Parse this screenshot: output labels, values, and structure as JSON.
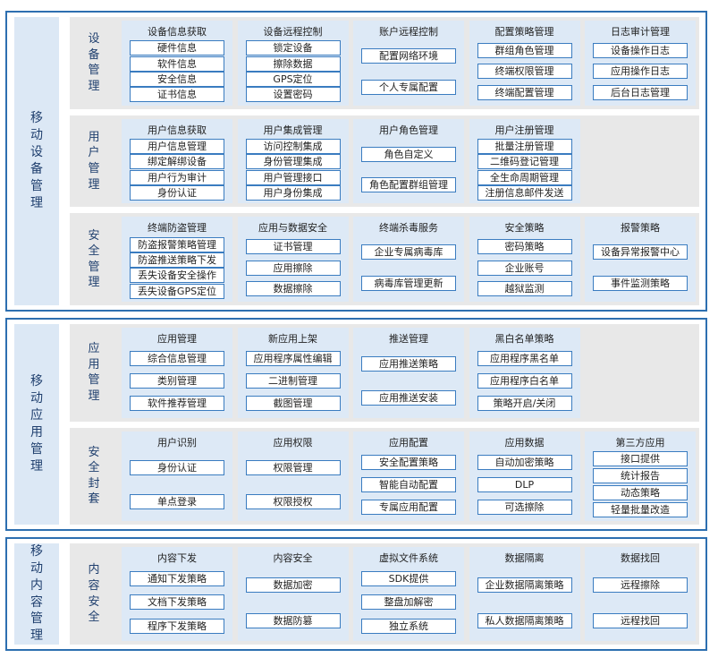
{
  "sections": [
    {
      "title": "移动设备管理",
      "groups": [
        {
          "title": "设备管理",
          "cards": [
            {
              "title": "设备信息获取",
              "items": [
                "硬件信息",
                "软件信息",
                "安全信息",
                "证书信息"
              ]
            },
            {
              "title": "设备远程控制",
              "items": [
                "锁定设备",
                "擦除数据",
                "GPS定位",
                "设置密码"
              ]
            },
            {
              "title": "账户远程控制",
              "items": [
                "配置网络环境",
                "个人专属配置"
              ]
            },
            {
              "title": "配置策略管理",
              "items": [
                "群组角色管理",
                "终端权限管理",
                "终端配置管理"
              ]
            },
            {
              "title": "日志审计管理",
              "items": [
                "设备操作日志",
                "应用操作日志",
                "后台日志管理"
              ]
            }
          ]
        },
        {
          "title": "用户管理",
          "cards": [
            {
              "title": "用户信息获取",
              "items": [
                "用户信息管理",
                "绑定解绑设备",
                "用户行为审计",
                "身份认证"
              ]
            },
            {
              "title": "用户集成管理",
              "items": [
                "访问控制集成",
                "身份管理集成",
                "用户管理接口",
                "用户身份集成"
              ]
            },
            {
              "title": "用户角色管理",
              "items": [
                "角色自定义",
                "角色配置群组管理"
              ]
            },
            {
              "title": "用户注册管理",
              "items": [
                "批量注册管理",
                "二维码登记管理",
                "全生命周期管理",
                "注册信息邮件发送"
              ]
            }
          ]
        },
        {
          "title": "安全管理",
          "cards": [
            {
              "title": "终端防盗管理",
              "items": [
                "防盗报警策略管理",
                "防盗推送策略下发",
                "丢失设备安全操作",
                "丢失设备GPS定位"
              ]
            },
            {
              "title": "应用与数据安全",
              "items": [
                "证书管理",
                "应用擦除",
                "数据擦除"
              ]
            },
            {
              "title": "终端杀毒服务",
              "items": [
                "企业专属病毒库",
                "病毒库管理更新"
              ]
            },
            {
              "title": "安全策略",
              "items": [
                "密码策略",
                "企业账号",
                "越狱监测"
              ]
            },
            {
              "title": "报警策略",
              "items": [
                "设备异常报警中心",
                "事件监测策略"
              ]
            }
          ]
        }
      ]
    },
    {
      "title": "移动应用管理",
      "groups": [
        {
          "title": "应用管理",
          "cards": [
            {
              "title": "应用管理",
              "items": [
                "综合信息管理",
                "类别管理",
                "软件推荐管理"
              ]
            },
            {
              "title": "新应用上架",
              "items": [
                "应用程序属性编辑",
                "二进制管理",
                "截图管理"
              ]
            },
            {
              "title": "推送管理",
              "items": [
                "应用推送策略",
                "应用推送安装"
              ]
            },
            {
              "title": "黑白名单策略",
              "items": [
                "应用程序黑名单",
                "应用程序白名单",
                "策略开启/关闭"
              ]
            }
          ]
        },
        {
          "title": "安全封套",
          "cards": [
            {
              "title": "用户识别",
              "items": [
                "身份认证",
                "单点登录"
              ]
            },
            {
              "title": "应用权限",
              "items": [
                "权限管理",
                "权限授权"
              ]
            },
            {
              "title": "应用配置",
              "items": [
                "安全配置策略",
                "智能自动配置",
                "专属应用配置"
              ]
            },
            {
              "title": "应用数据",
              "items": [
                "自动加密策略",
                "DLP",
                "可选擦除"
              ]
            },
            {
              "title": "第三方应用",
              "items": [
                "接口提供",
                "统计报告",
                "动态策略",
                "轻量批量改造"
              ]
            }
          ]
        }
      ]
    },
    {
      "title": "移动内容管理",
      "groups": [
        {
          "title": "内容安全",
          "cards": [
            {
              "title": "内容下发",
              "items": [
                "通知下发策略",
                "文档下发策略",
                "程序下发策略"
              ]
            },
            {
              "title": "内容安全",
              "items": [
                "数据加密",
                "数据防篡"
              ]
            },
            {
              "title": "虚拟文件系统",
              "items": [
                "SDK提供",
                "整盘加解密",
                "独立系统"
              ]
            },
            {
              "title": "数据隔离",
              "items": [
                "企业数据隔离策略",
                "私人数据隔离策略"
              ]
            },
            {
              "title": "数据找回",
              "items": [
                "远程擦除",
                "远程找回"
              ]
            }
          ]
        }
      ]
    }
  ]
}
